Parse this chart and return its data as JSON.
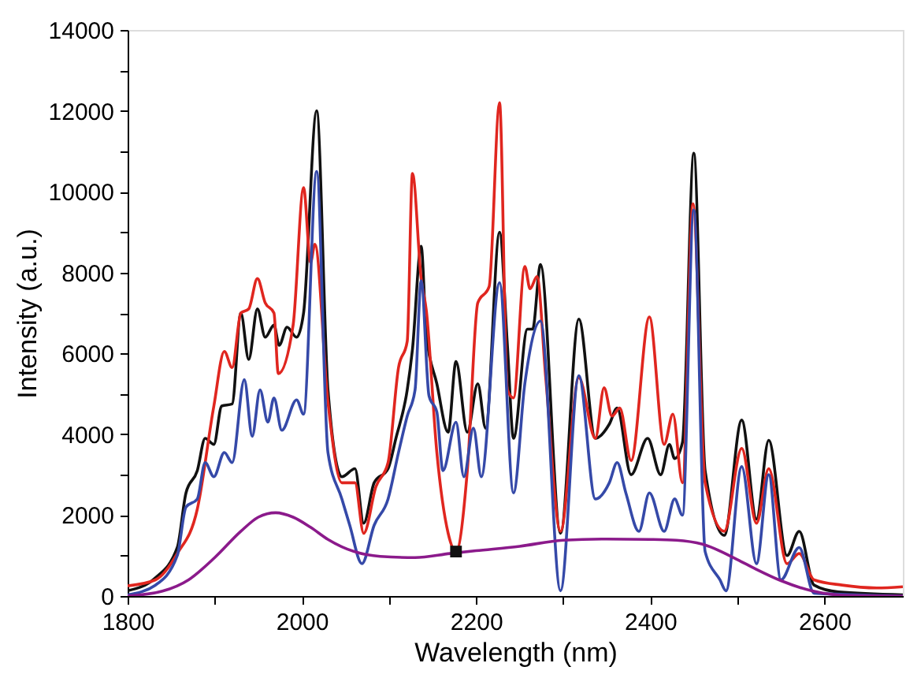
{
  "chart_data": {
    "type": "line",
    "xlabel": "Wavelength (nm)",
    "ylabel": "Intensity (a.u.)",
    "xlim": [
      1800,
      2690
    ],
    "ylim": [
      0,
      14000
    ],
    "xticks": [
      1800,
      {
        "value": 1900,
        "label": null
      },
      2000,
      {
        "value": 2100,
        "label": null
      },
      2200,
      {
        "value": 2300,
        "label": null
      },
      2400,
      {
        "value": 2500,
        "label": null
      },
      2600
    ],
    "yticks": [
      0,
      {
        "value": 1000,
        "label": null
      },
      2000,
      {
        "value": 3000,
        "label": null
      },
      4000,
      {
        "value": 5000,
        "label": null
      },
      6000,
      {
        "value": 7000,
        "label": null
      },
      8000,
      {
        "value": 9000,
        "label": null
      },
      10000,
      {
        "value": 11000,
        "label": null
      },
      12000,
      {
        "value": 13000,
        "label": null
      },
      14000
    ],
    "grid": false,
    "line_style": "solid",
    "series": [
      {
        "color": "#111111",
        "x": [
          1800,
          1832,
          1857,
          1867,
          1880,
          1889,
          1899,
          1908,
          1920,
          1930,
          1939,
          1949,
          1958,
          1968,
          1974,
          1983,
          1994,
          2002,
          2017,
          2030,
          2046,
          2061,
          2071,
          2083,
          2099,
          2108,
          2121,
          2127,
          2137,
          2143,
          2155,
          2168,
          2177,
          2190,
          2202,
          2211,
          2227,
          2236,
          2243,
          2259,
          2265,
          2274,
          2297,
          2318,
          2337,
          2353,
          2362,
          2378,
          2397,
          2412,
          2422,
          2428,
          2437,
          2450,
          2463,
          2485,
          2505,
          2522,
          2536,
          2557,
          2571,
          2588,
          2616,
          2690
        ],
        "values": [
          130,
          450,
          1200,
          2550,
          3100,
          3900,
          3750,
          4700,
          4750,
          7000,
          5850,
          7100,
          6400,
          6700,
          6200,
          6650,
          6400,
          7000,
          12000,
          5100,
          2950,
          3150,
          1800,
          2800,
          3150,
          3900,
          5100,
          6100,
          8650,
          6450,
          5250,
          4050,
          5800,
          4050,
          5250,
          4150,
          9000,
          6200,
          3900,
          6600,
          6600,
          8200,
          1550,
          6850,
          3900,
          4250,
          4650,
          3000,
          3900,
          3000,
          3750,
          3400,
          3800,
          10950,
          3100,
          1500,
          4350,
          1900,
          3850,
          1000,
          1600,
          270,
          100,
          30
        ]
      },
      {
        "color": "#e0261f",
        "x": [
          1800,
          1832,
          1857,
          1880,
          1899,
          1911,
          1920,
          1930,
          1939,
          1949,
          1958,
          1968,
          1973,
          1990,
          2002,
          2010,
          2015,
          2030,
          2046,
          2061,
          2071,
          2085,
          2099,
          2111,
          2121,
          2127,
          2137,
          2143,
          2155,
          2168,
          2177,
          2190,
          2202,
          2215,
          2227,
          2236,
          2243,
          2256,
          2262,
          2270,
          2280,
          2297,
          2318,
          2337,
          2347,
          2356,
          2365,
          2378,
          2399,
          2416,
          2426,
          2437,
          2449,
          2463,
          2485,
          2505,
          2522,
          2536,
          2557,
          2571,
          2588,
          2620,
          2660,
          2690
        ],
        "values": [
          250,
          400,
          1050,
          2150,
          4700,
          6050,
          5650,
          7000,
          7100,
          7850,
          7250,
          7000,
          5500,
          6700,
          10100,
          8250,
          8700,
          4800,
          2800,
          2800,
          1550,
          2700,
          3300,
          5650,
          6300,
          10450,
          7850,
          7050,
          3550,
          1550,
          1100,
          3100,
          7250,
          7650,
          12200,
          5100,
          4900,
          8150,
          7600,
          7900,
          5400,
          1600,
          5400,
          3900,
          5150,
          4450,
          4650,
          3350,
          6900,
          3750,
          4500,
          2800,
          9700,
          2800,
          1600,
          3650,
          1800,
          3150,
          800,
          1050,
          400,
          270,
          200,
          230
        ]
      },
      {
        "color": "#3549a8",
        "x": [
          1800,
          1832,
          1857,
          1867,
          1880,
          1889,
          1899,
          1911,
          1920,
          1934,
          1943,
          1952,
          1961,
          1968,
          1977,
          1994,
          2002,
          2017,
          2030,
          2046,
          2055,
          2069,
          2083,
          2099,
          2111,
          2121,
          2130,
          2137,
          2146,
          2155,
          2162,
          2177,
          2186,
          2197,
          2206,
          2227,
          2243,
          2256,
          2274,
          2297,
          2318,
          2337,
          2353,
          2362,
          2372,
          2387,
          2399,
          2416,
          2428,
          2437,
          2450,
          2463,
          2480,
          2487,
          2505,
          2522,
          2536,
          2550,
          2571,
          2588,
          2690
        ],
        "values": [
          30,
          270,
          1000,
          2200,
          2400,
          3300,
          2950,
          3550,
          3300,
          5350,
          3950,
          5100,
          4300,
          4900,
          4100,
          4850,
          4500,
          10500,
          3550,
          2400,
          1750,
          800,
          1750,
          2400,
          3550,
          4450,
          5100,
          7800,
          4950,
          4550,
          3100,
          4300,
          2950,
          4150,
          2950,
          7750,
          2550,
          5250,
          6800,
          130,
          5450,
          2400,
          2800,
          3300,
          2550,
          1600,
          2550,
          1600,
          2400,
          2000,
          9550,
          1100,
          400,
          130,
          3200,
          800,
          3000,
          400,
          1200,
          70,
          0
        ]
      },
      {
        "color": "#8b1a8b",
        "x": [
          1800,
          1840,
          1870,
          1900,
          1930,
          1950,
          1970,
          1990,
          2010,
          2030,
          2060,
          2090,
          2130,
          2170,
          2200,
          2250,
          2300,
          2350,
          2400,
          2430,
          2460,
          2500,
          2520,
          2550,
          2585,
          2620,
          2690
        ],
        "values": [
          0,
          120,
          400,
          950,
          1600,
          1950,
          2060,
          1950,
          1700,
          1400,
          1100,
          980,
          950,
          1050,
          1120,
          1230,
          1380,
          1410,
          1400,
          1380,
          1280,
          900,
          680,
          380,
          130,
          20,
          0
        ]
      },
      {
        "type": "scatter",
        "marker": "square",
        "color": "#111111",
        "x": [
          2177
        ],
        "values": [
          1100
        ]
      }
    ]
  }
}
